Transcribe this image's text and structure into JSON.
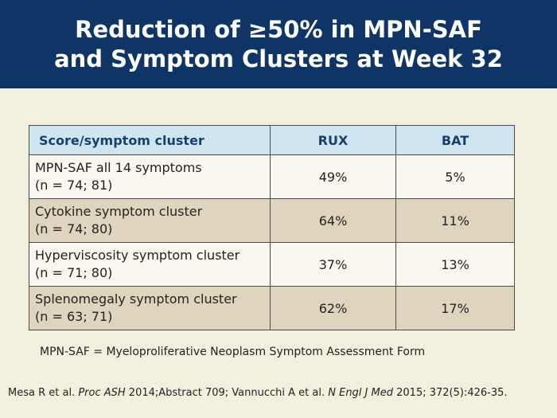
{
  "header": {
    "line1": "Reduction of ≥50% in MPN-SAF",
    "line2": "and Symptom Clusters at Week 32"
  },
  "table": {
    "columns": [
      "Score/symptom cluster",
      "RUX",
      "BAT"
    ],
    "rows": [
      {
        "label": "MPN-SAF all 14 symptoms",
        "n": "(n = 74; 81)",
        "rux": "49%",
        "bat": "5%"
      },
      {
        "label": "Cytokine symptom cluster",
        "n": "(n = 74; 80)",
        "rux": "64%",
        "bat": "11%"
      },
      {
        "label": "Hyperviscosity symptom cluster",
        "n": "(n = 71; 80)",
        "rux": "37%",
        "bat": "13%"
      },
      {
        "label": "Splenomegaly symptom cluster",
        "n": "(n = 63; 71)",
        "rux": "62%",
        "bat": "17%"
      }
    ]
  },
  "footnote": "MPN-SAF = Myeloproliferative Neoplasm Symptom Assessment Form",
  "reference": {
    "part1": "Mesa R et al. ",
    "journal1": "Proc ASH",
    "part2": " 2014;Abstract 709; Vannucchi A et al. ",
    "journal2": "N Engl J Med",
    "part3": " 2015; 372(5):426-35."
  }
}
